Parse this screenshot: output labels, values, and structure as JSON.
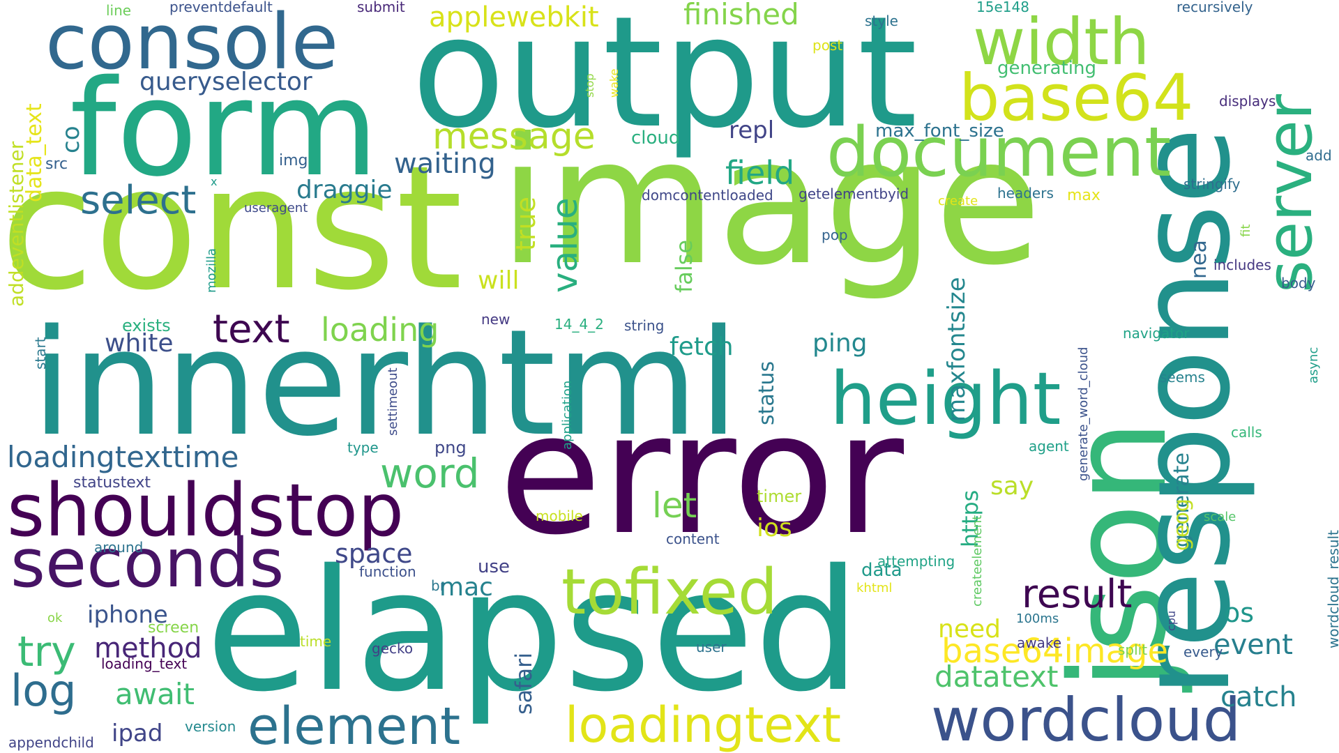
{
  "words": [
    {
      "text": "const",
      "color": "#a0da39"
    },
    {
      "text": "image",
      "color": "#8ed645"
    },
    {
      "text": "output",
      "color": "#1f9a8a"
    },
    {
      "text": "error",
      "color": "#440154"
    },
    {
      "text": "elapsed",
      "color": "#1e9b8a"
    },
    {
      "text": "innerhtml",
      "color": "#21918c"
    },
    {
      "text": "form",
      "color": "#22a884"
    },
    {
      "text": "json",
      "color": "#35b779"
    },
    {
      "text": "response",
      "color": "#21918c"
    },
    {
      "text": "console",
      "color": "#31688e"
    },
    {
      "text": "document",
      "color": "#7ad151"
    },
    {
      "text": "width",
      "color": "#8ed645"
    },
    {
      "text": "base64",
      "color": "#d2e21b"
    },
    {
      "text": "server",
      "color": "#2ab07f"
    },
    {
      "text": "height",
      "color": "#1f9e89"
    },
    {
      "text": "shouldstop",
      "color": "#440154"
    },
    {
      "text": "seconds",
      "color": "#471365"
    },
    {
      "text": "tofixed",
      "color": "#a5db36"
    },
    {
      "text": "wordcloud",
      "color": "#3b528b"
    },
    {
      "text": "loadingtext",
      "color": "#e2e418"
    },
    {
      "text": "element",
      "color": "#2c728e"
    },
    {
      "text": "message",
      "color": "#b5de2b"
    },
    {
      "text": "select",
      "color": "#2d708e"
    },
    {
      "text": "value",
      "color": "#29af7f"
    },
    {
      "text": "text",
      "color": "#3e0751"
    },
    {
      "text": "loading",
      "color": "#7fd34e"
    },
    {
      "text": "word",
      "color": "#4ac16d"
    },
    {
      "text": "result",
      "color": "#3e0751"
    },
    {
      "text": "try",
      "color": "#3bbb75"
    },
    {
      "text": "log",
      "color": "#2e6d8e"
    },
    {
      "text": "field",
      "color": "#22a785"
    },
    {
      "text": "applewebkit",
      "color": "#d8e219"
    },
    {
      "text": "finished",
      "color": "#84d44b"
    },
    {
      "text": "queryselector",
      "color": "#375a8c"
    },
    {
      "text": "waiting",
      "color": "#33628d"
    },
    {
      "text": "draggie",
      "color": "#297b8e"
    },
    {
      "text": "loadingtexttime",
      "color": "#31668e"
    },
    {
      "text": "base64image",
      "color": "#fde725"
    },
    {
      "text": "datatext",
      "color": "#4ec36b"
    },
    {
      "text": "catch",
      "color": "#26828e"
    },
    {
      "text": "event",
      "color": "#277f8e"
    },
    {
      "text": "method",
      "color": "#482677"
    },
    {
      "text": "await",
      "color": "#40bd72"
    },
    {
      "text": "maxfontsize",
      "color": "#24878e"
    },
    {
      "text": "will",
      "color": "#cae11f"
    },
    {
      "text": "true",
      "color": "#c2df23"
    },
    {
      "text": "false",
      "color": "#67cc5c"
    },
    {
      "text": "ping",
      "color": "#23888e"
    },
    {
      "text": "white",
      "color": "#3c4f8a"
    },
    {
      "text": "fetch",
      "color": "#1e9b8a"
    },
    {
      "text": "repl",
      "color": "#414487"
    },
    {
      "text": "let",
      "color": "#75d054"
    },
    {
      "text": "space",
      "color": "#3f4889"
    },
    {
      "text": "mac",
      "color": "#26828e"
    },
    {
      "text": "iphone",
      "color": "#3a548c"
    },
    {
      "text": "ipad",
      "color": "#404588"
    },
    {
      "text": "https",
      "color": "#25ac82"
    },
    {
      "text": "safari",
      "color": "#355f8d"
    },
    {
      "text": "generate",
      "color": "#26828e"
    },
    {
      "text": "geog",
      "color": "#c2df23"
    },
    {
      "text": "ios",
      "color": "#d0e11c"
    },
    {
      "text": "say",
      "color": "#bade28"
    },
    {
      "text": "need",
      "color": "#d8e219"
    },
    {
      "text": "os",
      "color": "#1f968b"
    },
    {
      "text": "status",
      "color": "#2a788e"
    },
    {
      "text": "nea",
      "color": "#31678e"
    },
    {
      "text": "co",
      "color": "#26828e"
    },
    {
      "text": "data_text",
      "color": "#e5e419"
    },
    {
      "text": "addeventlistener",
      "color": "#c0df25"
    },
    {
      "text": "src",
      "color": "#34608d"
    },
    {
      "text": "img",
      "color": "#34608d"
    },
    {
      "text": "useragent",
      "color": "#3e4a89"
    },
    {
      "text": "mozilla",
      "color": "#1e9b8a"
    },
    {
      "text": "x",
      "color": "#1e9b8a"
    },
    {
      "text": "cloud",
      "color": "#29af7f"
    },
    {
      "text": "max_font_size",
      "color": "#2c728e"
    },
    {
      "text": "generating",
      "color": "#42be71"
    },
    {
      "text": "domcontentloaded",
      "color": "#3f4788"
    },
    {
      "text": "getelementbyid",
      "color": "#414487"
    },
    {
      "text": "create",
      "color": "#e2e418"
    },
    {
      "text": "headers",
      "color": "#2c728e"
    },
    {
      "text": "max",
      "color": "#e5e419"
    },
    {
      "text": "pop",
      "color": "#33638d"
    },
    {
      "text": "exists",
      "color": "#2ab07f"
    },
    {
      "text": "new",
      "color": "#443983"
    },
    {
      "text": "14_4_2",
      "color": "#29af7f"
    },
    {
      "text": "string",
      "color": "#3b528b"
    },
    {
      "text": "start",
      "color": "#2a788e"
    },
    {
      "text": "settimeout",
      "color": "#3e4c8a"
    },
    {
      "text": "application",
      "color": "#1fa188"
    },
    {
      "text": "type",
      "color": "#1f968b"
    },
    {
      "text": "png",
      "color": "#3f4788"
    },
    {
      "text": "statustext",
      "color": "#414487"
    },
    {
      "text": "around",
      "color": "#2c738e"
    },
    {
      "text": "function",
      "color": "#3c508b"
    },
    {
      "text": "br",
      "color": "#2a778e"
    },
    {
      "text": "use",
      "color": "#424186"
    },
    {
      "text": "data",
      "color": "#1f9a8a"
    },
    {
      "text": "ok",
      "color": "#89d548"
    },
    {
      "text": "screen",
      "color": "#86d549"
    },
    {
      "text": "time",
      "color": "#bade28"
    },
    {
      "text": "loading_text",
      "color": "#440154"
    },
    {
      "text": "gecko",
      "color": "#424086"
    },
    {
      "text": "user",
      "color": "#2c728e"
    },
    {
      "text": "version",
      "color": "#23898e"
    },
    {
      "text": "appendchild",
      "color": "#414487"
    },
    {
      "text": "line",
      "color": "#6ccd5a"
    },
    {
      "text": "preventdefault",
      "color": "#3b528b"
    },
    {
      "text": "submit",
      "color": "#482878"
    },
    {
      "text": "style",
      "color": "#2c728e"
    },
    {
      "text": "15e148",
      "color": "#1f9e89"
    },
    {
      "text": "recursively",
      "color": "#33638d"
    },
    {
      "text": "post",
      "color": "#dde318"
    },
    {
      "text": "stop",
      "color": "#90d743"
    },
    {
      "text": "wake",
      "color": "#e7e419"
    },
    {
      "text": "displays",
      "color": "#472d7b"
    },
    {
      "text": "add",
      "color": "#2f6c8e"
    },
    {
      "text": "stringify",
      "color": "#2e6e8e"
    },
    {
      "text": "fit",
      "color": "#87d549"
    },
    {
      "text": "includes",
      "color": "#453882"
    },
    {
      "text": "body",
      "color": "#375b8d"
    },
    {
      "text": "navigator",
      "color": "#20a386"
    },
    {
      "text": "async",
      "color": "#1f9e89"
    },
    {
      "text": "seems",
      "color": "#26828e"
    },
    {
      "text": "generate_word_cloud",
      "color": "#3b528b"
    },
    {
      "text": "agent",
      "color": "#1fa088"
    },
    {
      "text": "calls",
      "color": "#35b779"
    },
    {
      "text": "wordcloud_result",
      "color": "#2c738e"
    },
    {
      "text": "scale",
      "color": "#54c568"
    },
    {
      "text": "createelement",
      "color": "#5ec962"
    },
    {
      "text": "attempting",
      "color": "#20a386"
    },
    {
      "text": "khtml",
      "color": "#e2e418"
    },
    {
      "text": "100ms",
      "color": "#2b758e"
    },
    {
      "text": "awake",
      "color": "#443983"
    },
    {
      "text": "cpu",
      "color": "#404688"
    },
    {
      "text": "split",
      "color": "#7ad151"
    },
    {
      "text": "every",
      "color": "#375a8c"
    },
    {
      "text": "mobile",
      "color": "#c8e020"
    },
    {
      "text": "timer",
      "color": "#addc30"
    },
    {
      "text": "content",
      "color": "#3b528b"
    }
  ]
}
